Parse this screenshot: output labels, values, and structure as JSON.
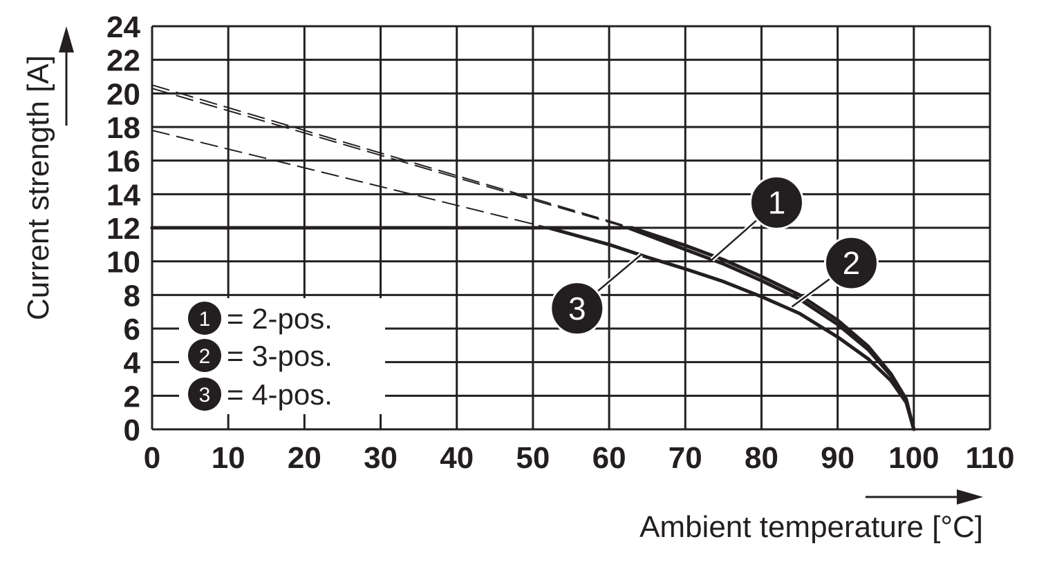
{
  "chart_data": {
    "type": "line",
    "xlabel": "Ambient temperature [°C]",
    "ylabel": "Current strength [A]",
    "xlim": [
      0,
      110
    ],
    "ylim": [
      0,
      24
    ],
    "x_ticks": [
      "0",
      "10",
      "20",
      "30",
      "40",
      "50",
      "60",
      "70",
      "80",
      "90",
      "100",
      "110"
    ],
    "y_ticks": [
      "0",
      "2",
      "4",
      "6",
      "8",
      "10",
      "12",
      "14",
      "16",
      "18",
      "20",
      "22",
      "24"
    ],
    "grid": true,
    "legend_position": "bottom-left",
    "series": [
      {
        "marker": "1",
        "name": "2-pos.",
        "solid": {
          "x": [
            0,
            63,
            70,
            75,
            80,
            85,
            90,
            94,
            97,
            99,
            100
          ],
          "y": [
            12,
            12,
            10.95,
            10.1,
            9.1,
            8.0,
            6.5,
            4.95,
            3.3,
            1.8,
            0
          ]
        },
        "dashed": {
          "x": [
            0,
            63
          ],
          "y": [
            20.5,
            12
          ]
        }
      },
      {
        "marker": "2",
        "name": "3-pos.",
        "solid": {
          "x": [
            0,
            62.5,
            70,
            75,
            80,
            85,
            90,
            94,
            97,
            99,
            100
          ],
          "y": [
            12,
            12,
            10.7,
            9.85,
            8.85,
            7.75,
            6.25,
            4.75,
            3.2,
            1.7,
            0
          ]
        },
        "dashed": {
          "x": [
            0,
            62.5
          ],
          "y": [
            20.3,
            12
          ]
        }
      },
      {
        "marker": "3",
        "name": "4-pos.",
        "solid": {
          "x": [
            0,
            52,
            60,
            65,
            70,
            75,
            80,
            85,
            90,
            94,
            97,
            99,
            100
          ],
          "y": [
            12,
            12,
            11.0,
            10.25,
            9.55,
            8.8,
            7.9,
            6.9,
            5.5,
            4.2,
            2.9,
            1.6,
            0
          ]
        },
        "dashed": {
          "x": [
            0,
            52
          ],
          "y": [
            17.8,
            12
          ]
        }
      }
    ],
    "markers": [
      {
        "label": "1",
        "x": 82,
        "y": 13.5,
        "pointer_to": [
          73.5,
          10.1
        ]
      },
      {
        "label": "2",
        "x": 91.8,
        "y": 9.9,
        "pointer_to": [
          84,
          7.3
        ]
      },
      {
        "label": "3",
        "x": 55.8,
        "y": 7.2,
        "pointer_to": [
          64.2,
          10.4
        ]
      }
    ],
    "legend": [
      {
        "num": "1",
        "text": "= 2-pos."
      },
      {
        "num": "2",
        "text": "= 3-pos."
      },
      {
        "num": "3",
        "text": "= 4-pos."
      }
    ]
  }
}
